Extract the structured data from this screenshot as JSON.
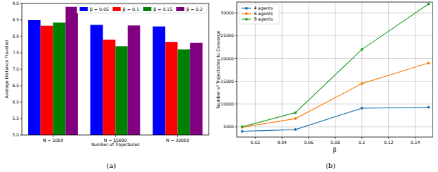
{
  "chart_data": [
    {
      "type": "bar",
      "caption": "(a)",
      "x_label": "Number of Trajectories",
      "y_label": "Average Distance Traveled",
      "categories": [
        "N = 5000",
        "N = 15000",
        "N = 30000"
      ],
      "series": [
        {
          "name": "β = 0.05",
          "color": "#0000ff",
          "values": [
            8.5,
            8.35,
            8.3
          ]
        },
        {
          "name": "β = 0.1",
          "color": "#ff0000",
          "values": [
            8.32,
            7.9,
            7.83
          ]
        },
        {
          "name": "β = 0.15",
          "color": "#008000",
          "values": [
            8.42,
            7.7,
            7.6
          ]
        },
        {
          "name": "β = 0.2",
          "color": "#800080",
          "values": [
            8.9,
            8.33,
            7.8
          ]
        }
      ],
      "ylim": [
        5,
        9
      ],
      "yticks": [
        {
          "value": 5,
          "label": "5.0"
        },
        {
          "value": 5.5,
          "label": "5.5"
        },
        {
          "value": 6,
          "label": "6.0"
        },
        {
          "value": 6.5,
          "label": "6.5"
        },
        {
          "value": 7,
          "label": "7.0"
        },
        {
          "value": 7.5,
          "label": "7.5"
        },
        {
          "value": 8,
          "label": "8.0"
        },
        {
          "value": 8.5,
          "label": "8.5"
        },
        {
          "value": 9,
          "label": "9.0"
        }
      ],
      "grid": false,
      "legend": "upper right"
    },
    {
      "type": "line",
      "caption": "(b)",
      "x_label": "β",
      "y_label": "Number of Trajectories to Converge",
      "x": [
        0.01,
        0.05,
        0.1,
        0.15
      ],
      "series": [
        {
          "name": "4 agents",
          "color": "#1f77b4",
          "marker": "circle",
          "values": [
            4000,
            4400,
            9100,
            9300
          ]
        },
        {
          "name": "6 agents",
          "color": "#ff7f0e",
          "marker": "circle",
          "values": [
            4900,
            6800,
            14500,
            19000
          ]
        },
        {
          "name": "8 agents",
          "color": "#2ca02c",
          "marker": "circle",
          "values": [
            5000,
            8100,
            22000,
            32000
          ]
        }
      ],
      "xlim": [
        0.006,
        0.153
      ],
      "xticks": [
        0.02,
        0.04,
        0.06,
        0.08,
        0.1,
        0.12,
        0.14
      ],
      "ylim": [
        2750,
        32400
      ],
      "yticks": [
        5000,
        10000,
        15000,
        20000,
        25000,
        30000
      ],
      "grid": true,
      "legend": "upper left"
    }
  ]
}
